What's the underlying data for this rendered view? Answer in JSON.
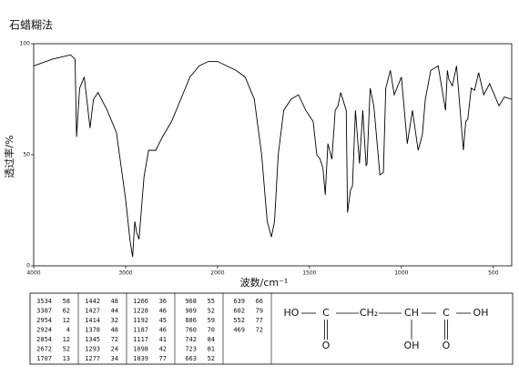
{
  "chart_data": {
    "type": "line",
    "title": "石蜡糊法",
    "x_label": "波数/cm⁻¹",
    "y_label": "透过率/%",
    "x": [
      4000,
      3800,
      3700,
      3600,
      3550,
      3534,
      3500,
      3450,
      3387,
      3350,
      3300,
      3200,
      3100,
      3000,
      2954,
      2924,
      2900,
      2880,
      2854,
      2800,
      2750,
      2672,
      2600,
      2500,
      2400,
      2300,
      2200,
      2100,
      2000,
      1950,
      1900,
      1850,
      1800,
      1760,
      1730,
      1707,
      1690,
      1670,
      1640,
      1600,
      1560,
      1520,
      1480,
      1460,
      1442,
      1427,
      1414,
      1400,
      1378,
      1360,
      1345,
      1330,
      1300,
      1293,
      1277,
      1266,
      1250,
      1228,
      1210,
      1192,
      1187,
      1170,
      1150,
      1117,
      1098,
      1085,
      1060,
      1039,
      1000,
      968,
      940,
      909,
      886,
      870,
      840,
      800,
      760,
      750,
      742,
      723,
      700,
      663,
      650,
      639,
      620,
      602,
      580,
      552,
      520,
      469,
      440,
      400
    ],
    "values": [
      90,
      93,
      94,
      95,
      93,
      58,
      80,
      85,
      62,
      75,
      78,
      70,
      60,
      30,
      12,
      4,
      20,
      15,
      12,
      40,
      52,
      52,
      58,
      65,
      75,
      85,
      90,
      92,
      92,
      90,
      88,
      85,
      75,
      50,
      20,
      13,
      20,
      50,
      70,
      75,
      77,
      70,
      65,
      50,
      48,
      44,
      32,
      55,
      48,
      70,
      72,
      78,
      70,
      24,
      34,
      36,
      70,
      46,
      70,
      45,
      46,
      80,
      72,
      41,
      42,
      80,
      88,
      77,
      85,
      55,
      70,
      52,
      59,
      75,
      88,
      90,
      70,
      88,
      84,
      81,
      90,
      52,
      65,
      66,
      80,
      79,
      87,
      77,
      82,
      72,
      76,
      75
    ],
    "color": "#000000",
    "xlim": [
      4000,
      400
    ],
    "xticks": [
      4000,
      3000,
      2000,
      1500,
      1000,
      500
    ],
    "ylim": [
      0,
      100
    ],
    "yticks": [
      0,
      50,
      100
    ],
    "peak_table": [
      [
        [
          3534,
          58
        ],
        [
          3387,
          62
        ],
        [
          2954,
          12
        ],
        [
          2924,
          4
        ],
        [
          2854,
          12
        ],
        [
          2672,
          52
        ],
        [
          1707,
          13
        ]
      ],
      [
        [
          1442,
          48
        ],
        [
          1427,
          44
        ],
        [
          1414,
          32
        ],
        [
          1378,
          48
        ],
        [
          1345,
          72
        ],
        [
          1293,
          24
        ],
        [
          1277,
          34
        ]
      ],
      [
        [
          1266,
          36
        ],
        [
          1228,
          46
        ],
        [
          1192,
          45
        ],
        [
          1187,
          46
        ],
        [
          1117,
          41
        ],
        [
          1098,
          42
        ],
        [
          1039,
          77
        ]
      ],
      [
        [
          968,
          55
        ],
        [
          909,
          52
        ],
        [
          886,
          59
        ],
        [
          760,
          70
        ],
        [
          742,
          84
        ],
        [
          723,
          81
        ],
        [
          663,
          52
        ]
      ],
      [
        [
          639,
          66
        ],
        [
          602,
          79
        ],
        [
          552,
          77
        ],
        [
          469,
          72
        ]
      ]
    ],
    "structure": {
      "chain": [
        "HO",
        "C",
        "CH₂",
        "CH",
        "C",
        "OH"
      ],
      "substituents": [
        "O",
        "OH",
        "O"
      ]
    }
  }
}
